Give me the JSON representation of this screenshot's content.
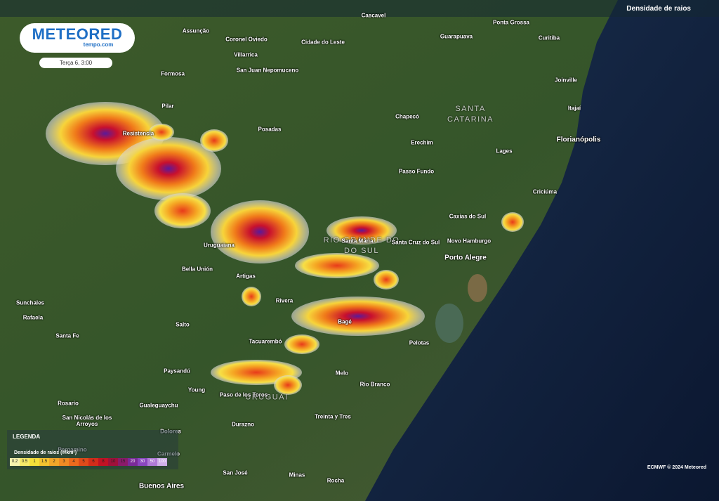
{
  "header": {
    "logo": "METEORED",
    "logo_sub": "tempo.com",
    "time": "Terça 6, 3:00",
    "layer": "Densidade de raios"
  },
  "regions": [
    "SANTA\nCATARINA",
    "RIO GRANDE DO\nDO SUL",
    "URUGUAI"
  ],
  "cities": [
    "Cascavel",
    "Ponta Grossa",
    "Assunção",
    "Coronel Oviedo",
    "Cidade do Leste",
    "Guarapuava",
    "Curitiba",
    "Villarrica",
    "San Juan Nepomuceno",
    "Formosa",
    "Joinville",
    "Pilar",
    "Itajaí",
    "Chapecó",
    "Resistencia",
    "Posadas",
    "Erechim",
    "Florianópolis",
    "Lages",
    "Passo Fundo",
    "Criciúma",
    "Caxias do Sul",
    "Santa Maria",
    "Santa Cruz do Sul",
    "Novo Hamburgo",
    "Uruguaiana",
    "Porto Alegre",
    "Bella Unión",
    "Artigas",
    "Sunchales",
    "Rivera",
    "Rafaela",
    "Bagé",
    "Salto",
    "Santa Fe",
    "Pelotas",
    "Tacuarembó",
    "Paysandú",
    "Melo",
    "Rio Branco",
    "Young",
    "Paso de los Toros",
    "Rosario",
    "Gualeguaychu",
    "Treinta y Tres",
    "San Nicolás de los\nArroyos",
    "Durazno",
    "Dolores",
    "Pergamino",
    "Carmelo",
    "San José",
    "Minas",
    "Buenos Aires",
    "Rocha"
  ],
  "legend": {
    "title": "LEGENDA",
    "subtitle": "Densidade de raios (#/km²)",
    "scale": [
      "0.2",
      "0.5",
      "1",
      "1.5",
      "2",
      "3",
      "4",
      "5",
      "6",
      "8",
      "10",
      "15",
      "20",
      "30",
      "50",
      "100"
    ]
  },
  "credit": "ECMWF © 2024 Meteored"
}
